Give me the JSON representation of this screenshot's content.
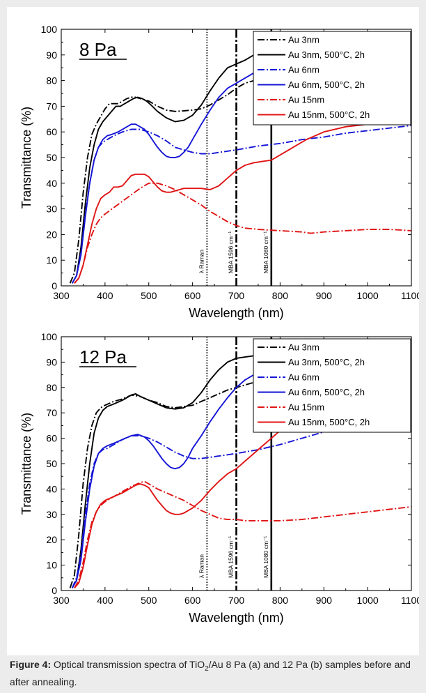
{
  "caption": {
    "label": "Figure 4:",
    "text_before_sub": " Optical transmission spectra of TiO",
    "subscript": "2",
    "text_after_sub": "/Au 8 Pa (a) and 12 Pa (b) samples before and after annealing."
  },
  "chart_data": [
    {
      "type": "line",
      "panel_label": "8 Pa",
      "xlabel": "Wavelength (nm)",
      "ylabel": "Transmittance (%)",
      "xlim": [
        300,
        1100
      ],
      "ylim": [
        0,
        100
      ],
      "xticks": [
        300,
        400,
        500,
        600,
        700,
        800,
        900,
        1000,
        1100
      ],
      "yticks": [
        0,
        10,
        20,
        30,
        40,
        50,
        60,
        70,
        80,
        90,
        100
      ],
      "legend_position": "top-right",
      "annotations": [
        {
          "x": 633,
          "style": "dotted",
          "label": "λ Raman"
        },
        {
          "x": 700,
          "style": "dashdot",
          "label": "MBA 1596 cm⁻¹"
        },
        {
          "x": 780,
          "style": "solid",
          "label": "MBA 1080 cm⁻¹"
        }
      ],
      "series": [
        {
          "name": "Au 3nm",
          "color": "#000000",
          "dash": "dashdot",
          "x": [
            320,
            330,
            340,
            350,
            360,
            370,
            380,
            390,
            400,
            410,
            420,
            430,
            440,
            450,
            460,
            470,
            480,
            490,
            500,
            520,
            540,
            560,
            580,
            600,
            620,
            640,
            660,
            680,
            700,
            720,
            740,
            760,
            780
          ],
          "y": [
            1,
            5,
            18,
            36,
            50,
            59,
            63,
            66,
            69,
            71,
            71,
            71,
            72,
            73,
            73.5,
            73.5,
            73,
            72.5,
            72,
            70,
            68.5,
            68,
            68.2,
            68.5,
            69,
            70.5,
            72.5,
            74.5,
            77,
            79,
            80,
            80.5,
            80.5
          ]
        },
        {
          "name": "Au 3nm, 500°C, 2h",
          "color": "#000000",
          "dash": "solid",
          "x": [
            325,
            335,
            345,
            355,
            365,
            375,
            385,
            395,
            405,
            415,
            425,
            435,
            445,
            455,
            465,
            475,
            485,
            495,
            505,
            520,
            540,
            560,
            580,
            600,
            620,
            640,
            660,
            680,
            700,
            720,
            740
          ],
          "y": [
            1,
            4,
            15,
            32,
            46,
            55,
            61,
            64,
            66,
            68,
            70,
            70,
            71,
            72,
            73,
            73.5,
            73,
            72,
            70.5,
            68,
            65.5,
            64,
            64.5,
            66.5,
            70.5,
            76,
            81,
            85,
            86.5,
            88,
            90
          ]
        },
        {
          "name": "Au 6nm",
          "color": "#1515d6",
          "dash": "dashdot",
          "x": [
            325,
            335,
            345,
            355,
            365,
            375,
            385,
            395,
            405,
            420,
            440,
            460,
            480,
            500,
            520,
            540,
            560,
            580,
            600,
            620,
            640,
            660,
            680,
            700,
            750,
            800,
            850,
            900,
            950,
            1000,
            1050,
            1100
          ],
          "y": [
            1,
            4,
            13,
            28,
            40,
            49,
            54,
            56,
            57,
            58.5,
            60,
            61,
            61,
            60,
            58.5,
            56.5,
            54,
            53,
            52,
            51.5,
            51.5,
            52,
            52.5,
            53,
            54.5,
            55.5,
            57,
            58,
            59.5,
            60.5,
            61.5,
            62.5
          ]
        },
        {
          "name": "Au 6nm, 500°C, 2h",
          "color": "#1515d6",
          "dash": "solid",
          "x": [
            325,
            335,
            345,
            355,
            365,
            375,
            385,
            395,
            405,
            415,
            430,
            445,
            460,
            470,
            480,
            490,
            500,
            510,
            520,
            530,
            540,
            550,
            560,
            570,
            580,
            590,
            600,
            620,
            640,
            660,
            680,
            700,
            720,
            740
          ],
          "y": [
            1,
            4,
            12,
            27,
            40,
            49,
            54,
            57,
            58.5,
            59,
            60,
            61.5,
            63,
            63,
            62,
            61,
            59,
            56.5,
            54,
            52,
            50.5,
            50,
            50,
            50.5,
            52,
            54,
            57,
            63,
            68.5,
            73.5,
            77,
            79,
            81,
            83
          ]
        },
        {
          "name": "Au 15nm",
          "color": "#e01515",
          "dash": "dashdot",
          "x": [
            330,
            340,
            350,
            360,
            370,
            380,
            390,
            400,
            420,
            440,
            460,
            480,
            500,
            520,
            540,
            560,
            580,
            600,
            620,
            640,
            660,
            680,
            700,
            720,
            750,
            800,
            850,
            870,
            900,
            950,
            1000,
            1050,
            1100
          ],
          "y": [
            1,
            3,
            8,
            15,
            20,
            24,
            26.5,
            28,
            30.5,
            33,
            35.5,
            38,
            40,
            40,
            39,
            37.5,
            35.5,
            33.5,
            31.5,
            29,
            27,
            25,
            23.5,
            22.5,
            22,
            21.5,
            21,
            20.5,
            21,
            21.5,
            22,
            22,
            21.5
          ]
        },
        {
          "name": "Au 15nm, 500°C, 2h",
          "color": "#e01515",
          "dash": "solid",
          "x": [
            330,
            340,
            350,
            360,
            370,
            380,
            390,
            400,
            410,
            420,
            430,
            440,
            450,
            460,
            470,
            480,
            490,
            500,
            510,
            520,
            530,
            540,
            550,
            560,
            580,
            600,
            620,
            640,
            660,
            680,
            700,
            720,
            740,
            760,
            780,
            800,
            820,
            840,
            860,
            880,
            900,
            950,
            1000,
            1050,
            1100
          ],
          "y": [
            1,
            3,
            8,
            16,
            24,
            30,
            34,
            35.5,
            36.5,
            38.5,
            38.5,
            39,
            41,
            43,
            43.5,
            43.5,
            43.5,
            42.5,
            40.5,
            38.5,
            37,
            36.5,
            36.5,
            37,
            38,
            38,
            38,
            37.5,
            39,
            42,
            45,
            47,
            48,
            48.5,
            49,
            51,
            53,
            55,
            57,
            58.5,
            60,
            62,
            63,
            64.5,
            65.5
          ]
        }
      ]
    },
    {
      "type": "line",
      "panel_label": "12 Pa",
      "xlabel": "Wavelength (nm)",
      "ylabel": "Transmittance (%)",
      "xlim": [
        300,
        1100
      ],
      "ylim": [
        0,
        100
      ],
      "xticks": [
        300,
        400,
        500,
        600,
        700,
        800,
        900,
        1000,
        1100
      ],
      "yticks": [
        0,
        10,
        20,
        30,
        40,
        50,
        60,
        70,
        80,
        90,
        100
      ],
      "legend_position": "top-right",
      "annotations": [
        {
          "x": 633,
          "style": "dotted",
          "label": "λ Raman"
        },
        {
          "x": 700,
          "style": "dashdot",
          "label": "MBA 1596 cm⁻¹"
        },
        {
          "x": 780,
          "style": "solid",
          "label": "MBA 1080 cm⁻¹"
        }
      ],
      "series": [
        {
          "name": "Au 3nm",
          "color": "#000000",
          "dash": "dashdot",
          "x": [
            320,
            330,
            340,
            350,
            360,
            370,
            380,
            390,
            400,
            420,
            440,
            460,
            480,
            500,
            520,
            540,
            560,
            580,
            600,
            620,
            640,
            660,
            680,
            700,
            720,
            740
          ],
          "y": [
            1,
            6,
            22,
            42,
            56,
            65,
            70,
            72,
            73,
            74.5,
            75.5,
            77,
            76.5,
            75,
            74,
            72.5,
            72,
            72.5,
            73,
            74.5,
            76,
            77.5,
            79,
            80,
            81,
            82
          ]
        },
        {
          "name": "Au 3nm, 500°C, 2h",
          "color": "#000000",
          "dash": "solid",
          "x": [
            325,
            335,
            345,
            355,
            365,
            375,
            385,
            395,
            405,
            420,
            440,
            460,
            470,
            480,
            500,
            520,
            540,
            560,
            580,
            600,
            620,
            640,
            660,
            680,
            700,
            720,
            740
          ],
          "y": [
            1,
            4,
            16,
            34,
            50,
            62,
            68,
            71,
            72.5,
            73.5,
            75,
            77,
            77.5,
            76.5,
            75,
            73.5,
            72,
            71.5,
            72,
            74,
            78,
            83,
            87,
            90,
            91.5,
            92,
            92.5
          ]
        },
        {
          "name": "Au 6nm",
          "color": "#1515d6",
          "dash": "dashdot",
          "x": [
            325,
            335,
            345,
            355,
            365,
            375,
            385,
            395,
            405,
            420,
            440,
            460,
            480,
            500,
            520,
            540,
            560,
            580,
            600,
            620,
            640,
            660,
            680,
            700,
            750,
            800,
            850,
            900,
            950,
            1000,
            1050,
            1100
          ],
          "y": [
            1,
            5,
            14,
            30,
            42,
            50,
            54,
            55.5,
            56,
            57.5,
            59.5,
            61,
            61,
            60,
            58.5,
            56.5,
            54.5,
            53,
            52,
            52,
            52.5,
            53,
            53.5,
            54,
            55.5,
            57.5,
            60,
            62.5,
            65.5,
            68,
            71,
            74
          ]
        },
        {
          "name": "Au 6nm, 500°C, 2h",
          "color": "#1515d6",
          "dash": "solid",
          "x": [
            325,
            335,
            345,
            355,
            365,
            375,
            385,
            395,
            405,
            420,
            440,
            460,
            475,
            490,
            500,
            510,
            520,
            530,
            540,
            550,
            560,
            570,
            580,
            590,
            600,
            620,
            640,
            660,
            680,
            700,
            720,
            740
          ],
          "y": [
            1,
            4,
            12,
            27,
            40,
            49,
            54,
            56,
            57,
            58,
            59.5,
            61,
            61.5,
            60.5,
            59,
            57,
            54.5,
            52,
            50,
            48.5,
            48,
            48.5,
            50,
            52.5,
            56,
            61,
            66.5,
            71.5,
            76,
            80,
            83,
            85
          ]
        },
        {
          "name": "Au 15nm",
          "color": "#e01515",
          "dash": "dashdot",
          "x": [
            330,
            340,
            350,
            360,
            370,
            380,
            390,
            400,
            420,
            440,
            460,
            480,
            490,
            500,
            520,
            540,
            560,
            580,
            600,
            620,
            640,
            660,
            680,
            700,
            720,
            750,
            800,
            850,
            900,
            950,
            1000,
            1050,
            1100
          ],
          "y": [
            1,
            4,
            11,
            20,
            27,
            31,
            33.5,
            35,
            37,
            39,
            41,
            42.5,
            43,
            42,
            40,
            38.5,
            37,
            35.5,
            33.5,
            31.5,
            30,
            28.5,
            28,
            28,
            27.5,
            27.5,
            27.5,
            28,
            29,
            30,
            31,
            32,
            33
          ]
        },
        {
          "name": "Au 15nm, 500°C, 2h",
          "color": "#e01515",
          "dash": "solid",
          "x": [
            330,
            340,
            350,
            360,
            370,
            380,
            390,
            400,
            420,
            440,
            460,
            470,
            480,
            490,
            500,
            510,
            520,
            530,
            540,
            550,
            560,
            570,
            580,
            600,
            620,
            640,
            660,
            680,
            700,
            720,
            740,
            760,
            780,
            800,
            850,
            900,
            950,
            1000,
            1050,
            1100
          ],
          "y": [
            1,
            3,
            9,
            18,
            26,
            31,
            34,
            35.5,
            37,
            38.5,
            40.5,
            41.5,
            42,
            41.5,
            40.5,
            38,
            35.5,
            33.5,
            31.5,
            30.5,
            30,
            30,
            30.5,
            32.5,
            35.5,
            39.5,
            43,
            46,
            48,
            51,
            54,
            57,
            60,
            63,
            67,
            71,
            74,
            76,
            78.5,
            81
          ]
        }
      ]
    }
  ]
}
